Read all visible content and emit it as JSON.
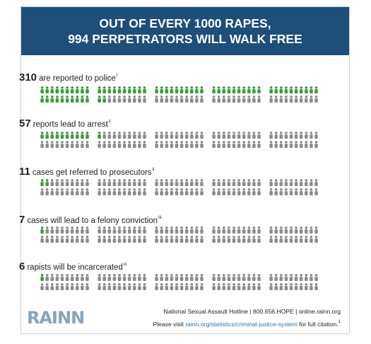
{
  "header": {
    "line1": "OUT OF EVERY 1000 RAPES,",
    "line2": "994 PERPETRATORS WILL WALK FREE"
  },
  "rows": [
    {
      "number": "310",
      "text": "are reported to police",
      "note": "i"
    },
    {
      "number": "57",
      "text": "reports lead to arrest",
      "note": "ii"
    },
    {
      "number": "11",
      "text": "cases get referred to prosecutors",
      "note": "ii"
    },
    {
      "number": "7",
      "text": "cases will lead to a felony conviction",
      "note": "iii"
    },
    {
      "number": "6",
      "text": "rapists will be incarcerated",
      "note": "iii"
    }
  ],
  "footer": {
    "logo": "RAINN",
    "hotline": "National Sexual Assault Hotline | 800.656.HOPE | online.rainn.org",
    "visit_prefix": "Please visit ",
    "visit_link": "rainn.org/statistics/criminal-justice-system",
    "visit_suffix": " for full citation.",
    "citation_mark": "1"
  },
  "colors": {
    "header_bg": "#1e4f7a",
    "highlight": "#3c9d3c",
    "base": "#8c8c8c",
    "logo": "#8aa3bb",
    "link": "#2b6db3"
  },
  "chart_data": {
    "type": "pictograph",
    "title": "OUT OF EVERY 1000 RAPES, 994 PERPETRATORS WILL WALK FREE",
    "total": 1000,
    "categories": [
      "are reported to police",
      "reports lead to arrest",
      "cases get referred to prosecutors",
      "cases will lead to a felony conviction",
      "rapists will be incarcerated"
    ],
    "values": [
      310,
      57,
      11,
      7,
      6
    ]
  }
}
